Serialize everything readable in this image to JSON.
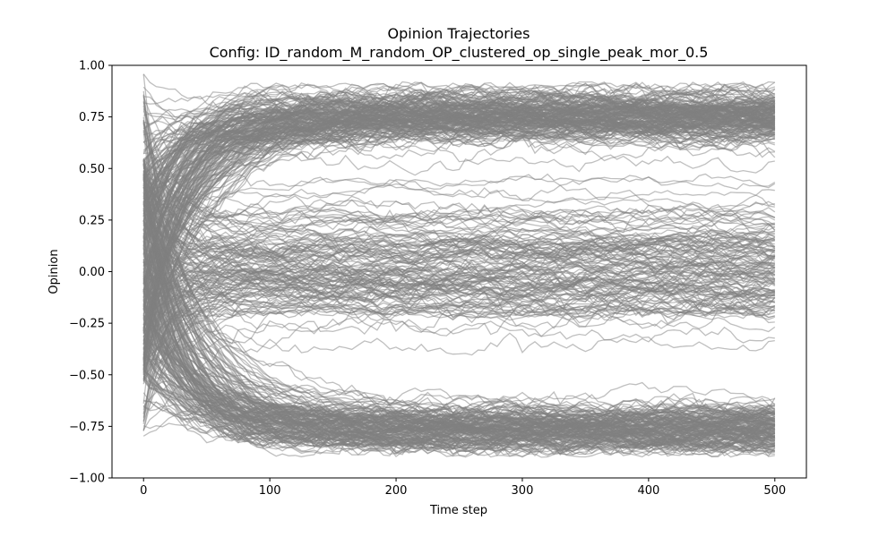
{
  "chart_data": {
    "type": "line",
    "title": "Opinion Trajectories",
    "subtitle": "Config: ID_random_M_random_OP_clustered_op_single_peak_mor_0.5",
    "xlabel": "Time step",
    "ylabel": "Opinion",
    "xlim": [
      -25,
      525
    ],
    "ylim": [
      -1.0,
      1.0
    ],
    "x_ticks": [
      0,
      100,
      200,
      300,
      400,
      500
    ],
    "x_tick_labels": [
      "0",
      "100",
      "200",
      "300",
      "400",
      "500"
    ],
    "y_ticks": [
      -1.0,
      -0.75,
      -0.5,
      -0.25,
      0.0,
      0.25,
      0.5,
      0.75,
      1.0
    ],
    "y_tick_labels": [
      "−1.00",
      "−0.75",
      "−0.50",
      "−0.25",
      "0.00",
      "0.25",
      "0.50",
      "0.75",
      "1.00"
    ],
    "grid": false,
    "legend": "none",
    "line_color": "#808080",
    "line_alpha": 0.5,
    "time_steps": [
      0,
      500
    ],
    "trajectory_count": 500,
    "initial_opinion_range": [
      -0.8,
      1.0
    ],
    "steady_state_bands": [
      {
        "center": 0.75,
        "spread": 0.13,
        "share": 0.38
      },
      {
        "center": -0.75,
        "spread": 0.13,
        "share": 0.34
      },
      {
        "center": 0.05,
        "spread": 0.42,
        "share": 0.28
      }
    ],
    "opinion_envelope": [
      -0.9,
      0.92
    ]
  }
}
